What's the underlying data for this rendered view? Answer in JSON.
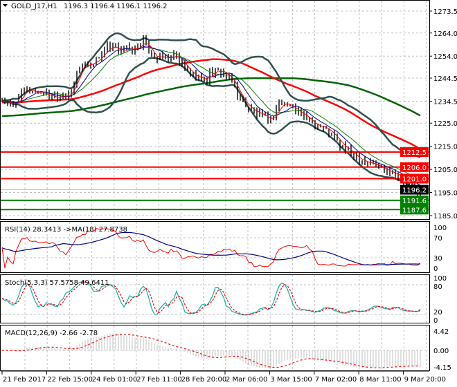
{
  "header": {
    "symbol": "GOLD_J17,H1",
    "ohlc": "1196.3 1196.4 1196.1 1196.2"
  },
  "chart_data": [
    {
      "type": "candlestick",
      "title": "GOLD_J17,H1",
      "ylim": [
        1185.0,
        1273.5
      ],
      "y_ticks": [
        "1273.5",
        "1264.0",
        "1254.0",
        "1244.5",
        "1234.5",
        "1225.0",
        "1215.0",
        "1205.0",
        "1195.0",
        "1185.0"
      ],
      "x_ticks": [
        "21 Feb 2017",
        "22 Feb 15:00",
        "24 Feb 01:00",
        "27 Feb 11:00",
        "28 Feb 20:00",
        "2 Mar 06:00",
        "3 Mar 15:00",
        "7 Mar 02:00",
        "8 Mar 11:00",
        "9 Mar 20:00"
      ],
      "grid": true,
      "close_path": [
        [
          0,
          1234.9
        ],
        [
          4,
          1231.9
        ],
        [
          6,
          1236.4
        ],
        [
          9,
          1239.4
        ],
        [
          15,
          1237.9
        ],
        [
          18,
          1236.4
        ],
        [
          25,
          1237.9
        ],
        [
          27,
          1246.9
        ],
        [
          29,
          1249.9
        ],
        [
          33,
          1251.4
        ],
        [
          38,
          1257.4
        ],
        [
          43,
          1256.8
        ],
        [
          48,
          1256.8
        ],
        [
          51,
          1260.9
        ],
        [
          54,
          1254.4
        ],
        [
          59,
          1252.9
        ],
        [
          63,
          1253.8
        ],
        [
          66,
          1248.4
        ],
        [
          70,
          1244.8
        ],
        [
          74,
          1243.9
        ],
        [
          75,
          1246.9
        ],
        [
          78,
          1247.5
        ],
        [
          80,
          1246.9
        ],
        [
          84,
          1240.9
        ],
        [
          86,
          1234.9
        ],
        [
          90,
          1230.5
        ],
        [
          94,
          1227.5
        ],
        [
          97,
          1226.0
        ],
        [
          100,
          1234.0
        ],
        [
          105,
          1232.0
        ],
        [
          109,
          1227.5
        ],
        [
          112,
          1225.1
        ],
        [
          116,
          1223.0
        ],
        [
          119,
          1220.0
        ],
        [
          122,
          1215.5
        ],
        [
          127,
          1211.0
        ],
        [
          132,
          1208.0
        ],
        [
          137,
          1205.6
        ],
        [
          141,
          1204.1
        ],
        [
          145,
          1200.0
        ],
        [
          149,
          1196.1
        ],
        [
          151,
          1196.2
        ]
      ],
      "levels": [
        {
          "value": "1212.5",
          "color": "#ff0000"
        },
        {
          "value": "1206.0",
          "color": "#ff0000"
        },
        {
          "value": "1201.0",
          "color": "#ff0000"
        },
        {
          "value": "1191.6",
          "color": "#008000"
        },
        {
          "value": "1187.6",
          "color": "#008000"
        }
      ],
      "current_price": {
        "value": "1196.2",
        "color": "#000000"
      },
      "indicator_colors": {
        "bands": "#2f4f4f",
        "ma_slow_red": "#ff0000",
        "ma_slow_green": "#006400",
        "ma_fast_red": "#ff0000",
        "ma_fast_blue": "#00008b",
        "ma_fast_green": "#008000"
      }
    },
    {
      "type": "line",
      "title": "RSI(14) 28.3413  ->MA(18) 27.8738",
      "ylim": [
        0,
        100
      ],
      "y_ticks": [
        "100",
        "70",
        "30",
        "0"
      ],
      "last_values": {
        "rsi": 28.3413,
        "ma": 27.8738
      },
      "colors": {
        "rsi": "#ff0000",
        "ma": "#000080"
      }
    },
    {
      "type": "line",
      "title": "Stoch(5,3,3) 57.5758 49.6411",
      "ylim": [
        0,
        100
      ],
      "y_ticks": [
        "100",
        "80",
        "20",
        "0"
      ],
      "last_values": {
        "main": 57.5758,
        "signal": 49.6411
      },
      "colors": {
        "main": "#20b2aa",
        "signal": "#ff0000"
      }
    },
    {
      "type": "bar",
      "title": "MACD(12,26,9) -2.66 -2.78",
      "ylim": [
        -4.15,
        4.42
      ],
      "y_ticks": [
        "4.42",
        "0.00",
        "-4.15"
      ],
      "last_values": {
        "macd": -2.66,
        "signal": -2.78
      },
      "colors": {
        "histogram": "#c0c0c0",
        "signal": "#ff0000"
      }
    }
  ]
}
